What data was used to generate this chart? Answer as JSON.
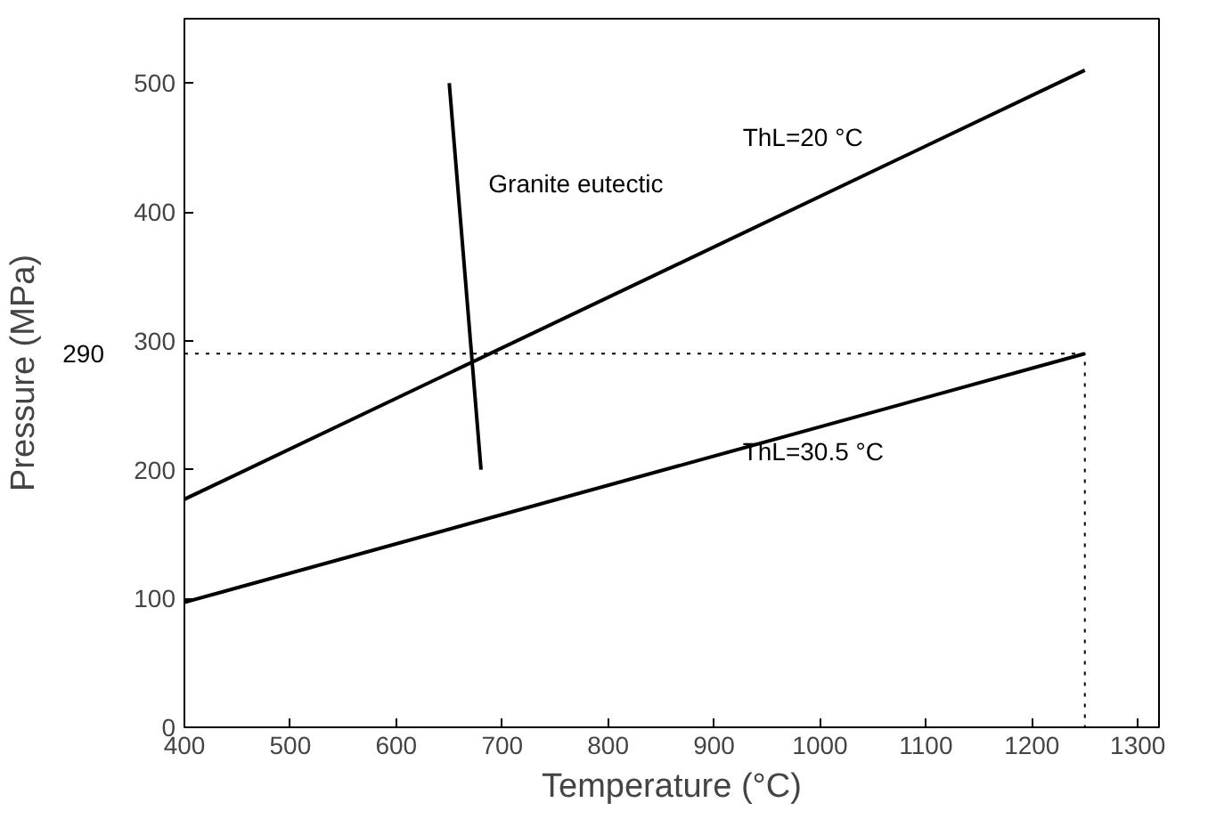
{
  "chart_data": {
    "type": "line",
    "xlabel": "Temperature (°C)",
    "ylabel": "Pressure (MPa)",
    "xlim": [
      400,
      1320
    ],
    "ylim": [
      0,
      550
    ],
    "xticks": [
      400,
      500,
      600,
      700,
      800,
      900,
      1000,
      1100,
      1200,
      1300
    ],
    "yticks": [
      0,
      100,
      200,
      300,
      400,
      500
    ],
    "grid": false,
    "marker": "none",
    "series": [
      {
        "color": "#000000",
        "x": [
          400,
          1250
        ],
        "values": [
          177,
          510
        ]
      },
      {
        "color": "#000000",
        "x": [
          400,
          1250
        ],
        "values": [
          97,
          290
        ]
      },
      {
        "color": "#000000",
        "x": [
          650,
          680
        ],
        "values": [
          500,
          200
        ]
      },
      {
        "color": "#000000",
        "x": [
          400,
          1250,
          1250
        ],
        "values": [
          290,
          290,
          0
        ],
        "line_style": "dotted"
      }
    ],
    "annotations": [
      "ThL=20 °C",
      "Granite eutectic",
      "ThL=30.5 °C",
      "290"
    ]
  }
}
